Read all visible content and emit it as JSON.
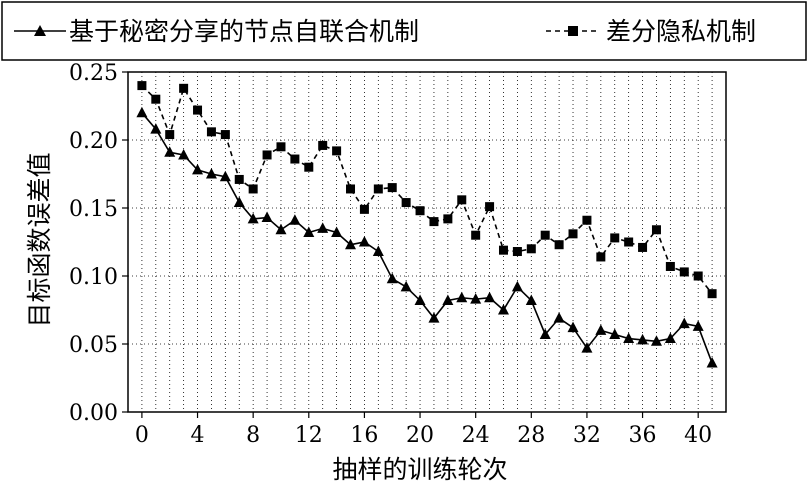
{
  "chart_data": {
    "type": "line",
    "title": "",
    "xlabel": "抽样的训练轮次",
    "ylabel": "目标函数误差值",
    "xlim": [
      -1,
      42
    ],
    "ylim": [
      0,
      0.25
    ],
    "x_ticks": [
      0,
      4,
      8,
      12,
      16,
      20,
      24,
      28,
      32,
      36,
      40
    ],
    "x_tick_labels": [
      "0",
      "4",
      "8",
      "12",
      "16",
      "20",
      "24",
      "28",
      "32",
      "36",
      "40"
    ],
    "y_ticks": [
      0,
      0.05,
      0.1,
      0.15,
      0.2,
      0.25
    ],
    "y_tick_labels": [
      "0.00",
      "0.05",
      "0.10",
      "0.15",
      "0.20",
      "0.25"
    ],
    "grid": "dotted, major and minor vertical, horizontal at y ticks",
    "legend_position": "top, above plot",
    "series": [
      {
        "name": "基于秘密分享的节点自联合机制",
        "line_style": "solid",
        "marker": "triangle",
        "color": "#000000",
        "x": [
          0,
          1,
          2,
          3,
          4,
          5,
          6,
          7,
          8,
          9,
          10,
          11,
          12,
          13,
          14,
          15,
          16,
          17,
          18,
          19,
          20,
          21,
          22,
          23,
          24,
          25,
          26,
          27,
          28,
          29,
          30,
          31,
          32,
          33,
          34,
          35,
          36,
          37,
          38,
          39,
          40,
          41
        ],
        "y": [
          0.22,
          0.208,
          0.191,
          0.189,
          0.178,
          0.175,
          0.173,
          0.154,
          0.142,
          0.143,
          0.134,
          0.141,
          0.132,
          0.135,
          0.132,
          0.123,
          0.125,
          0.118,
          0.098,
          0.092,
          0.082,
          0.069,
          0.082,
          0.084,
          0.083,
          0.084,
          0.075,
          0.092,
          0.082,
          0.057,
          0.069,
          0.062,
          0.047,
          0.06,
          0.057,
          0.054,
          0.053,
          0.052,
          0.054,
          0.065,
          0.063,
          0.036
        ]
      },
      {
        "name": "差分隐私机制",
        "line_style": "dashed",
        "marker": "square",
        "color": "#000000",
        "x": [
          0,
          1,
          2,
          3,
          4,
          5,
          6,
          7,
          8,
          9,
          10,
          11,
          12,
          13,
          14,
          15,
          16,
          17,
          18,
          19,
          20,
          21,
          22,
          23,
          24,
          25,
          26,
          27,
          28,
          29,
          30,
          31,
          32,
          33,
          34,
          35,
          36,
          37,
          38,
          39,
          40,
          41
        ],
        "y": [
          0.24,
          0.23,
          0.204,
          0.238,
          0.222,
          0.206,
          0.204,
          0.171,
          0.164,
          0.189,
          0.195,
          0.186,
          0.18,
          0.196,
          0.192,
          0.164,
          0.149,
          0.164,
          0.165,
          0.154,
          0.148,
          0.14,
          0.142,
          0.156,
          0.13,
          0.151,
          0.119,
          0.118,
          0.12,
          0.13,
          0.123,
          0.131,
          0.141,
          0.114,
          0.128,
          0.125,
          0.121,
          0.134,
          0.107,
          0.103,
          0.1,
          0.087
        ]
      }
    ]
  }
}
